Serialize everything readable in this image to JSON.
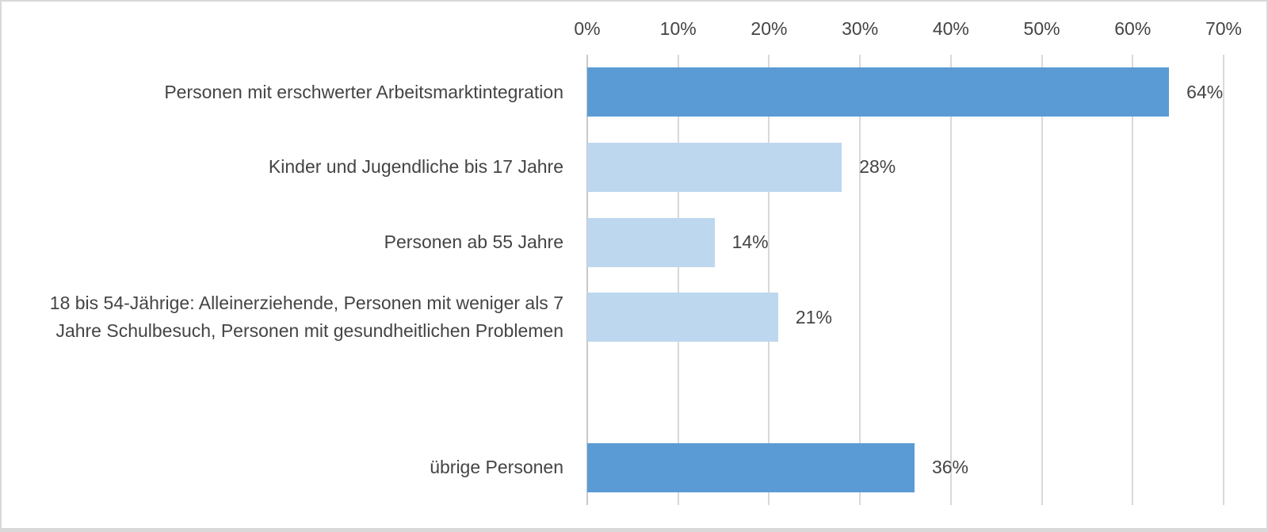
{
  "chart_data": {
    "type": "bar",
    "orientation": "horizontal",
    "title": "",
    "x_axis": {
      "position": "top",
      "min": 0,
      "max": 70,
      "step": 10,
      "tick_labels": [
        "0%",
        "10%",
        "20%",
        "30%",
        "40%",
        "50%",
        "60%",
        "70%"
      ]
    },
    "grid": true,
    "legend": false,
    "rows": [
      {
        "label": "Personen mit erschwerter Arbeitsmarktintegration",
        "value": 64,
        "value_label": "64%",
        "emphasis": "highlight"
      },
      {
        "label": "Kinder und Jugendliche bis 17 Jahre",
        "value": 28,
        "value_label": "28%",
        "emphasis": "regular"
      },
      {
        "label": "Personen ab 55 Jahre",
        "value": 14,
        "value_label": "14%",
        "emphasis": "regular"
      },
      {
        "label": "18 bis 54-Jährige: Alleinerziehende, Personen mit weniger als 7\nJahre Schulbesuch, Personen mit gesundheitlichen Problemen",
        "value": 21,
        "value_label": "21%",
        "emphasis": "regular"
      },
      {
        "label": "",
        "value": null,
        "value_label": "",
        "emphasis": null
      },
      {
        "label": "übrige Personen",
        "value": 36,
        "value_label": "36%",
        "emphasis": "highlight"
      }
    ],
    "colors": {
      "highlight_bar": "#5B9BD5",
      "regular_bar": "#BDD7EE",
      "gridline": "#D9D9D9",
      "axis_line": "#C9C9C9",
      "text": "#444444",
      "frame_border": "#D9D9D9"
    }
  }
}
